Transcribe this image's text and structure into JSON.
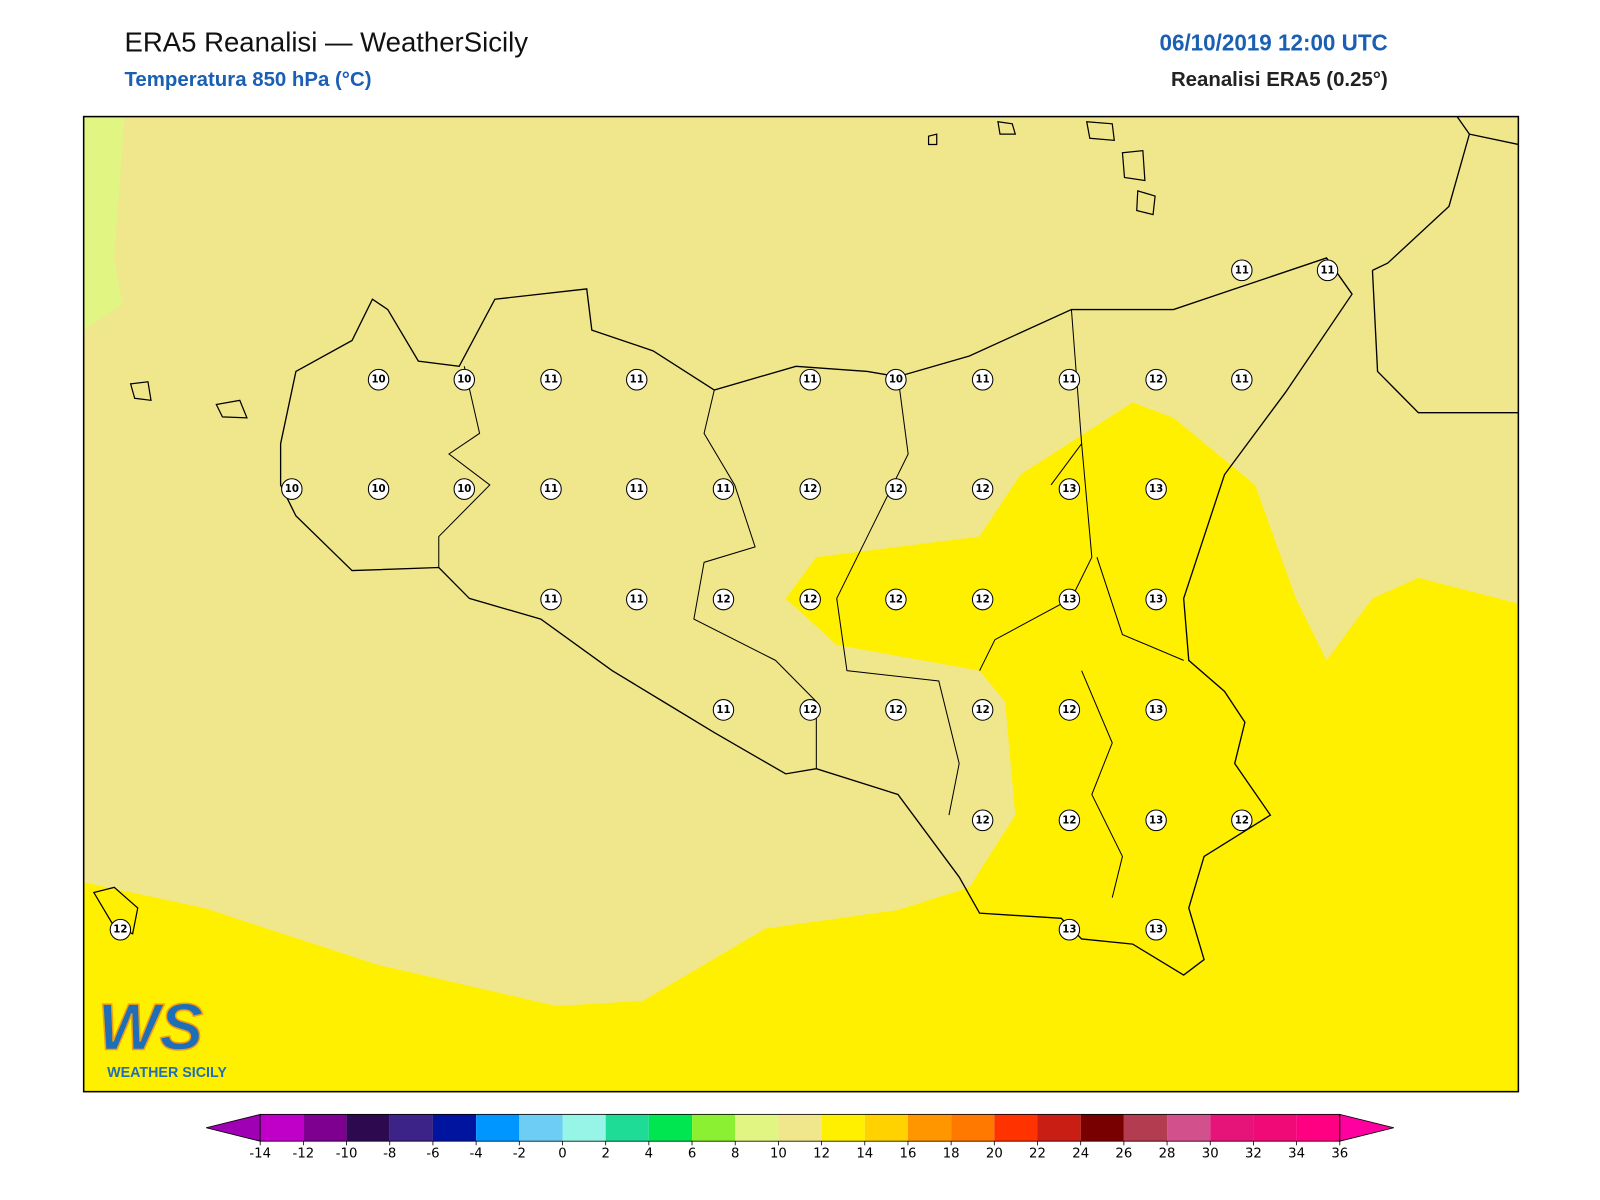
{
  "header": {
    "title": "ERA5 Reanalisi — WeatherSicily",
    "subtitle": "Temperatura 850 hPa (°C)",
    "datetime": "06/10/2019 12:00 UTC",
    "source": "Reanalisi ERA5 (0.25°)"
  },
  "stations": [
    11,
    11,
    10,
    10,
    11,
    11,
    11,
    10,
    11,
    11,
    12,
    11,
    10,
    10,
    10,
    11,
    11,
    11,
    12,
    12,
    12,
    13,
    13,
    11,
    11,
    12,
    12,
    12,
    12,
    13,
    13,
    11,
    12,
    12,
    12,
    12,
    13,
    12,
    12,
    13,
    12,
    12,
    13,
    13
  ],
  "colorbar": {
    "ticks": [
      -14,
      -12,
      -10,
      -8,
      -6,
      -4,
      -2,
      0,
      2,
      4,
      6,
      8,
      10,
      12,
      14,
      16,
      18,
      20,
      22,
      24,
      26,
      28,
      30,
      32,
      34,
      36
    ],
    "colors": [
      "#a000b4",
      "#c000c8",
      "#7d0091",
      "#2d0a50",
      "#3c2387",
      "#0014a0",
      "#0096ff",
      "#6ecdf5",
      "#96f5e6",
      "#1edc96",
      "#00e650",
      "#8cf032",
      "#e1f582",
      "#f0e68c",
      "#fff000",
      "#ffd200",
      "#ff9600",
      "#ff7800",
      "#ff3200",
      "#c81e14",
      "#780000",
      "#b43c50",
      "#d2508c",
      "#e61478",
      "#f00a78",
      "#ff0082",
      "#ff00a0"
    ]
  },
  "logo": {
    "mark": "WS",
    "name": "WEATHER SICILY"
  }
}
